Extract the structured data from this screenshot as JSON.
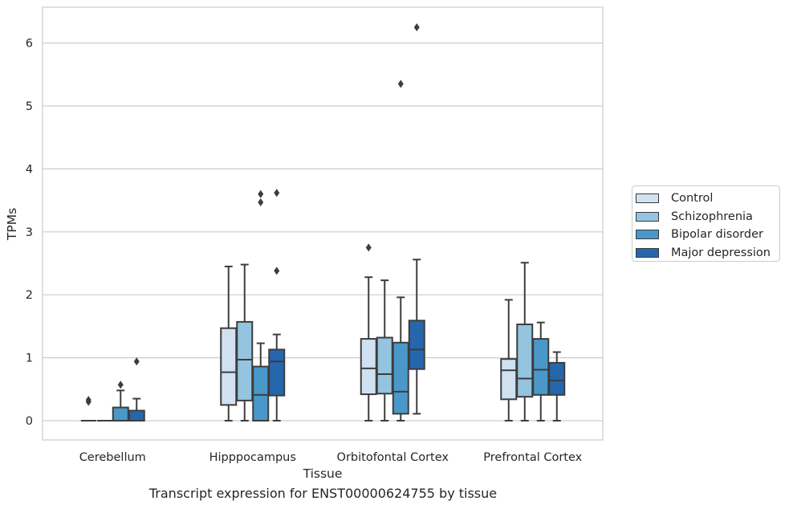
{
  "chart_data": {
    "type": "box",
    "xlabel": "Tissue",
    "ylabel": "TPMs",
    "caption": "Transcript expression for ENST00000624755 by tissue",
    "ylim": [
      -0.3,
      6.6
    ],
    "yticks": [
      0,
      1,
      2,
      3,
      4,
      5,
      6
    ],
    "grid": "horizontal",
    "legend_position": "right",
    "categories": [
      "Cerebellum",
      "Hipppocampus",
      "Orbitofontal Cortex",
      "Prefrontal Cortex"
    ],
    "series": [
      {
        "name": "Control",
        "color": "#d0e1f2",
        "boxes": [
          {
            "whislo": 0,
            "q1": 0,
            "med": 0,
            "q3": 0,
            "whishi": 0,
            "fliers": [
              0.3,
              0.33
            ]
          },
          {
            "whislo": 0,
            "q1": 0.25,
            "med": 0.77,
            "q3": 1.47,
            "whishi": 2.45,
            "fliers": []
          },
          {
            "whislo": 0,
            "q1": 0.42,
            "med": 0.83,
            "q3": 1.3,
            "whishi": 2.28,
            "fliers": [
              2.75
            ]
          },
          {
            "whislo": 0,
            "q1": 0.34,
            "med": 0.8,
            "q3": 0.98,
            "whishi": 1.92,
            "fliers": []
          }
        ]
      },
      {
        "name": "Schizophrenia",
        "color": "#94c4df",
        "boxes": [
          {
            "whislo": 0,
            "q1": 0,
            "med": 0,
            "q3": 0,
            "whishi": 0,
            "fliers": []
          },
          {
            "whislo": 0,
            "q1": 0.32,
            "med": 0.97,
            "q3": 1.57,
            "whishi": 2.48,
            "fliers": []
          },
          {
            "whislo": 0,
            "q1": 0.43,
            "med": 0.74,
            "q3": 1.32,
            "whishi": 2.23,
            "fliers": []
          },
          {
            "whislo": 0,
            "q1": 0.38,
            "med": 0.67,
            "q3": 1.53,
            "whishi": 2.51,
            "fliers": []
          }
        ]
      },
      {
        "name": "Bipolar disorder",
        "color": "#4a98c9",
        "boxes": [
          {
            "whislo": 0,
            "q1": 0,
            "med": 0,
            "q3": 0.21,
            "whishi": 0.48,
            "fliers": [
              0.57
            ]
          },
          {
            "whislo": 0,
            "q1": 0,
            "med": 0.41,
            "q3": 0.86,
            "whishi": 1.23,
            "fliers": [
              3.47,
              3.6
            ]
          },
          {
            "whislo": 0,
            "q1": 0.11,
            "med": 0.46,
            "q3": 1.24,
            "whishi": 1.96,
            "fliers": [
              5.35
            ]
          },
          {
            "whislo": 0,
            "q1": 0.41,
            "med": 0.81,
            "q3": 1.3,
            "whishi": 1.56,
            "fliers": []
          }
        ]
      },
      {
        "name": "Major depression",
        "color": "#2666ac",
        "boxes": [
          {
            "whislo": 0,
            "q1": 0,
            "med": 0,
            "q3": 0.16,
            "whishi": 0.35,
            "fliers": [
              0.94
            ]
          },
          {
            "whislo": 0,
            "q1": 0.4,
            "med": 0.94,
            "q3": 1.13,
            "whishi": 1.37,
            "fliers": [
              2.38,
              3.62
            ]
          },
          {
            "whislo": 0.11,
            "q1": 0.82,
            "med": 1.13,
            "q3": 1.59,
            "whishi": 2.56,
            "fliers": [
              6.25
            ]
          },
          {
            "whislo": 0,
            "q1": 0.41,
            "med": 0.64,
            "q3": 0.92,
            "whishi": 1.09,
            "fliers": []
          }
        ]
      }
    ]
  }
}
